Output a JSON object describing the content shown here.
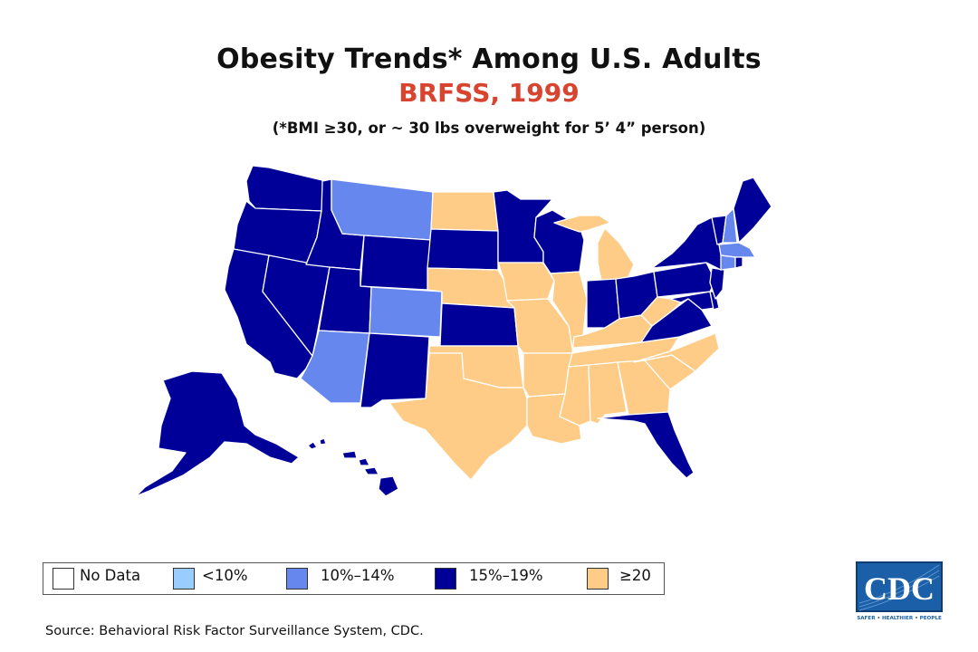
{
  "title": "Obesity Trends* Among U.S. Adults",
  "subtitle": "BRFSS, 1999",
  "note": "(*BMI ≥30, or ~ 30 lbs overweight for 5’ 4” person)",
  "source": "Source: Behavioral Risk Factor Surveillance System, CDC.",
  "logo_text": "CDC",
  "logo_tagline": "SAFER • HEALTHIER • PEOPLE",
  "colors": {
    "no_data": "#ffffff",
    "lt10": "#99ccff",
    "10_14": "#6688ee",
    "15_19": "#000099",
    "ge20": "#ffcc88",
    "outline": "#ffffff",
    "title_accent": "#d8442f",
    "logo_blue": "#1a5fa8"
  },
  "legend": [
    {
      "key": "no_data",
      "label": "No Data"
    },
    {
      "key": "lt10",
      "label": "<10%"
    },
    {
      "key": "10_14",
      "label": "10%–14%"
    },
    {
      "key": "15_19",
      "label": "15%–19%"
    },
    {
      "key": "ge20",
      "label": "≥20"
    }
  ],
  "state_categories": {
    "WA": "15_19",
    "OR": "15_19",
    "CA": "15_19",
    "NV": "15_19",
    "ID": "15_19",
    "MT": "10_14",
    "WY": "15_19",
    "UT": "15_19",
    "AZ": "10_14",
    "CO": "10_14",
    "NM": "15_19",
    "ND": "ge20",
    "SD": "15_19",
    "NE": "ge20",
    "KS": "15_19",
    "OK": "ge20",
    "TX": "ge20",
    "MN": "15_19",
    "IA": "ge20",
    "MO": "ge20",
    "AR": "ge20",
    "LA": "ge20",
    "WI": "15_19",
    "IL": "ge20",
    "MI": "ge20",
    "IN": "15_19",
    "OH": "15_19",
    "KY": "ge20",
    "TN": "ge20",
    "MS": "ge20",
    "AL": "ge20",
    "GA": "ge20",
    "FL": "15_19",
    "SC": "ge20",
    "NC": "ge20",
    "VA": "15_19",
    "WV": "ge20",
    "MD": "15_19",
    "DE": "15_19",
    "NJ": "15_19",
    "PA": "15_19",
    "NY": "15_19",
    "CT": "10_14",
    "RI": "15_19",
    "MA": "10_14",
    "VT": "15_19",
    "NH": "10_14",
    "ME": "15_19",
    "AK": "15_19",
    "HI": "15_19"
  }
}
